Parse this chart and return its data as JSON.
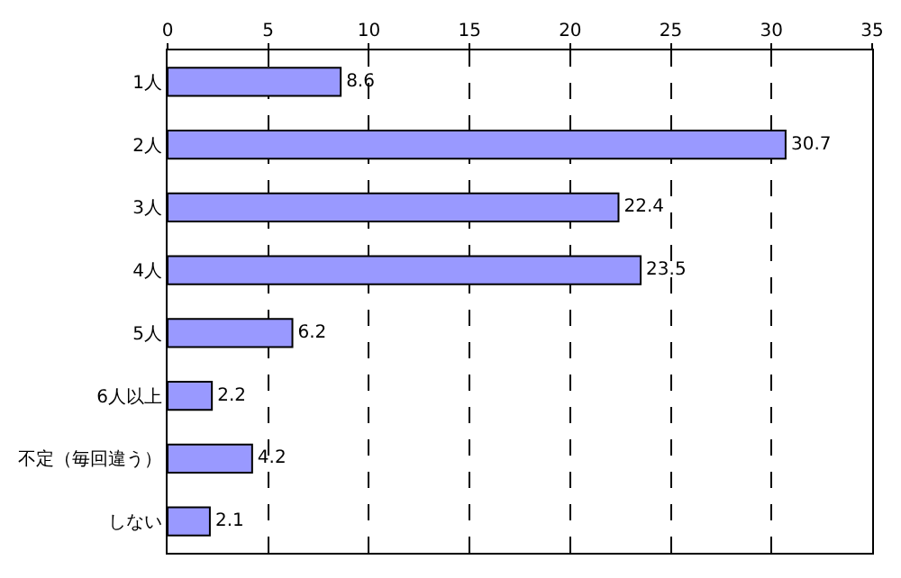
{
  "chart_data": {
    "type": "bar",
    "orientation": "horizontal",
    "categories": [
      "1人",
      "2人",
      "3人",
      "4人",
      "5人",
      "6人以上",
      "不定（毎回違う）",
      "しない"
    ],
    "values": [
      8.6,
      30.7,
      22.4,
      23.5,
      6.2,
      2.2,
      4.2,
      2.1
    ],
    "color": "#9999ff",
    "xlim": [
      0,
      35
    ],
    "xticks": [
      0,
      5,
      10,
      15,
      20,
      25,
      30,
      35
    ],
    "grid": "x",
    "data_labels": true
  }
}
